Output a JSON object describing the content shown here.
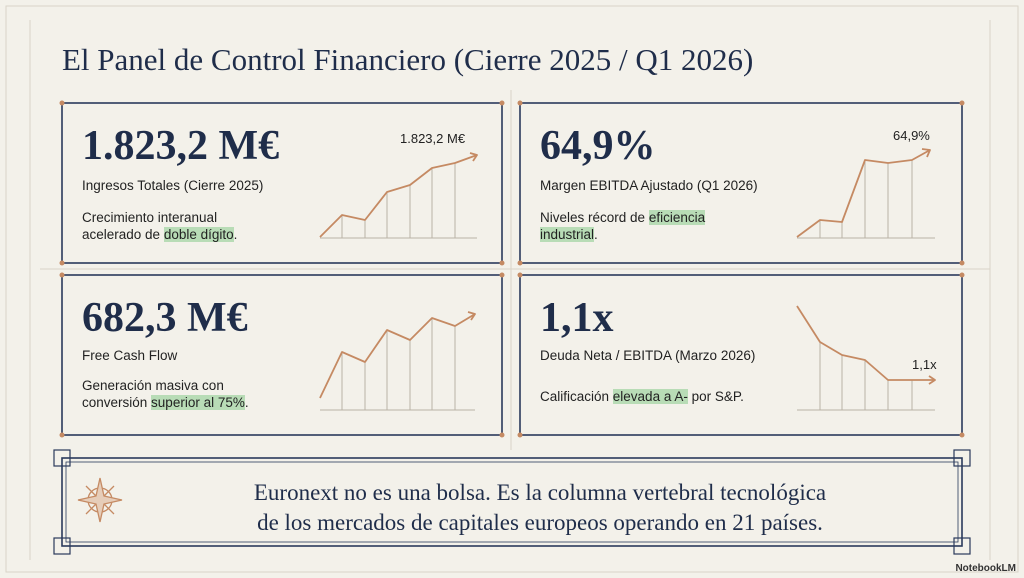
{
  "header": {
    "title": "El Panel de Control Financiero (Cierre 2025 / Q1 2026)"
  },
  "cards": [
    {
      "value": "1.823,2 M€",
      "label": "Ingresos Totales (Cierre 2025)",
      "description": [
        "Crecimiento interanual acelerado de ",
        "doble dígito",
        "."
      ],
      "trend_label": "1.823,2 M€"
    },
    {
      "value": "64,9%",
      "label": "Margen EBITDA Ajustado (Q1 2026)",
      "description": [
        "Niveles récord de ",
        "eficiencia industrial",
        "."
      ],
      "trend_label": "64,9%"
    },
    {
      "value": "682,3 M€",
      "label": "Free Cash Flow",
      "description": [
        "Generación masiva con conversión ",
        "superior al 75%",
        "."
      ]
    },
    {
      "value": "1,1x",
      "label": "Deuda Neta / EBITDA (Marzo 2026)",
      "description": [
        "Calificación ",
        "elevada a A-",
        " por S&P."
      ],
      "trend_label": "1,1x"
    }
  ],
  "footer": {
    "lines": [
      "Euronext no es una bolsa. Es la columna vertebral tecnológica",
      "de los mercados de capitales europeos operando en 21 países."
    ]
  },
  "watermark": "NotebookLM"
}
